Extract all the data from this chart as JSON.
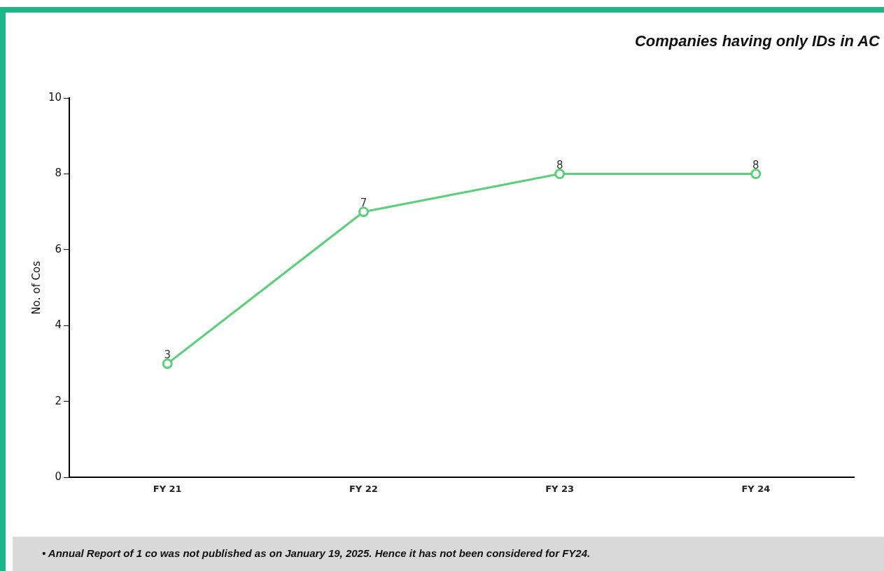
{
  "chart_data": {
    "type": "line",
    "title": "Companies having only IDs in AC",
    "ylabel": "No. of Cos",
    "categories": [
      "FY 21",
      "FY 22",
      "FY 23",
      "FY 24"
    ],
    "series": [
      {
        "color": "#5ccf7a",
        "values": [
          3,
          7,
          8,
          8
        ]
      }
    ],
    "ylim": [
      0,
      10
    ],
    "yticks": [
      0,
      2,
      4,
      6,
      8,
      10
    ],
    "grid": false,
    "legend": false,
    "marker": "circle",
    "line_style": "solid",
    "data_labels": true,
    "annotations": [
      "•  Annual Report of 1 co was not published as on January 19, 2025. Hence it has not been considered for FY24."
    ]
  }
}
